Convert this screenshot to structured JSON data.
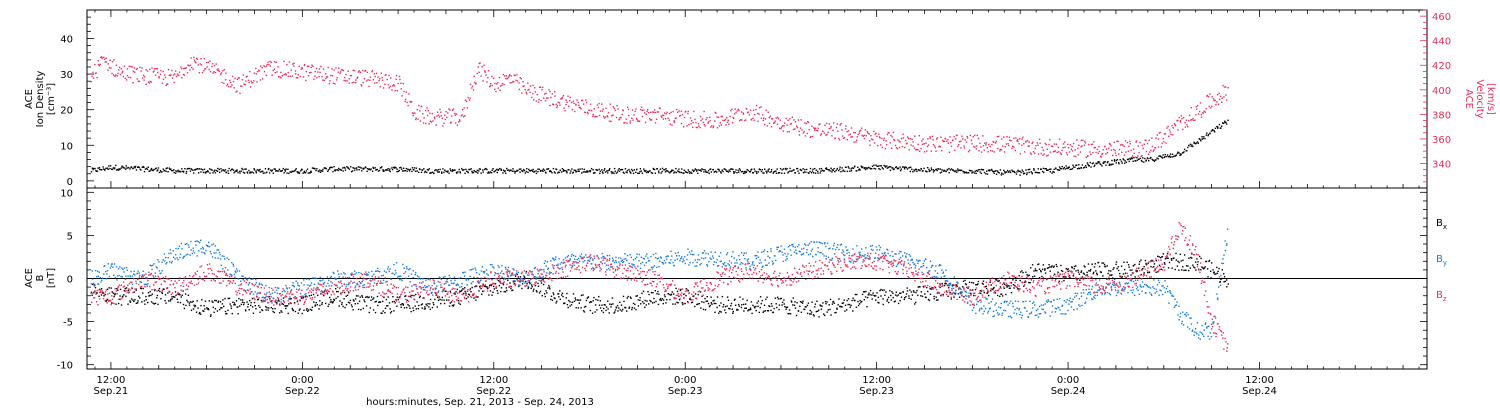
{
  "x_axis": {
    "title": "hours:minutes, Sep. 21, 2013 - Sep. 24, 2013",
    "range_hours": [
      -1.5,
      82.5
    ],
    "ticks": [
      {
        "hour": 0,
        "time": "12:00",
        "date": "Sep.21"
      },
      {
        "hour": 12,
        "time": "0:00",
        "date": "Sep.22"
      },
      {
        "hour": 24,
        "time": "12:00",
        "date": "Sep.22"
      },
      {
        "hour": 36,
        "time": "0:00",
        "date": "Sep.23"
      },
      {
        "hour": 48,
        "time": "12:00",
        "date": "Sep.23"
      },
      {
        "hour": 60,
        "time": "0:00",
        "date": "Sep.24"
      },
      {
        "hour": 72,
        "time": "12:00",
        "date": "Sep.24"
      }
    ]
  },
  "colors": {
    "black": "#000000",
    "red": "#e8305a",
    "blue": "#1a7ee0"
  },
  "chart_data": [
    {
      "type": "scatter",
      "panel": "top",
      "ylabel_left": [
        "ACE",
        "Ion Density",
        "[cm⁻³]"
      ],
      "ylabel_right": [
        "ACE",
        "Velocity",
        "[km/s]"
      ],
      "ylim_left": [
        -2,
        48
      ],
      "ylim_right": [
        320,
        465
      ],
      "yticks_left": [
        0,
        10,
        20,
        30,
        40
      ],
      "yticks_right": [
        340,
        360,
        380,
        400,
        420,
        440,
        460
      ],
      "series": [
        {
          "name": "",
          "axis": "left",
          "color": "#000000",
          "x": [
            -1.3,
            0,
            2,
            4,
            6,
            8,
            10,
            12,
            14,
            16,
            18,
            20,
            22,
            24,
            26,
            28,
            30,
            32,
            34,
            36,
            38,
            40,
            42,
            44,
            46,
            48,
            50,
            52,
            54,
            56,
            57,
            58,
            59,
            60,
            62,
            64,
            65,
            66,
            67,
            68,
            69,
            70
          ],
          "y": [
            3,
            4,
            3.5,
            3,
            3,
            3,
            3,
            3,
            3.5,
            3.5,
            3.5,
            3,
            3,
            3,
            3,
            3,
            3,
            3,
            3,
            3,
            3,
            3,
            3,
            3,
            3.5,
            4,
            3.5,
            3,
            3,
            2.5,
            2.5,
            3,
            3,
            4,
            5,
            6,
            6,
            7,
            8,
            11,
            14,
            17
          ]
        },
        {
          "name": "",
          "axis": "right",
          "color": "#e8305a",
          "x": [
            -1.3,
            -0.5,
            0.5,
            2,
            4,
            5,
            6,
            7,
            8,
            9,
            10,
            12,
            14,
            16,
            18,
            19,
            20,
            21,
            22,
            22.5,
            23,
            24,
            25,
            26,
            28,
            30,
            32,
            34,
            36,
            38,
            40,
            42,
            44,
            46,
            48,
            50,
            52,
            54,
            56,
            58,
            60,
            62,
            64,
            65,
            66,
            67,
            68,
            69,
            70
          ],
          "y": [
            410,
            425,
            415,
            412,
            410,
            425,
            418,
            412,
            404,
            412,
            418,
            415,
            412,
            410,
            406,
            382,
            378,
            378,
            378,
            400,
            418,
            405,
            410,
            400,
            392,
            385,
            380,
            380,
            377,
            375,
            383,
            374,
            368,
            366,
            360,
            358,
            356,
            357,
            356,
            354,
            353,
            352,
            352,
            354,
            362,
            373,
            382,
            392,
            400
          ]
        }
      ]
    },
    {
      "type": "scatter",
      "panel": "bottom",
      "ylabel_left": [
        "ACE",
        "B",
        "[nT]"
      ],
      "ylim": [
        -10.5,
        10.5
      ],
      "yticks": [
        -10,
        -5,
        0,
        5,
        10
      ],
      "zero_line": true,
      "legend_position": "right",
      "series": [
        {
          "name": "Bx",
          "legend_text": "B",
          "legend_sub": "x",
          "color": "#000000",
          "x": [
            -1.3,
            0,
            2,
            4,
            6,
            8,
            10,
            12,
            14,
            16,
            18,
            20,
            22,
            24,
            26,
            28,
            30,
            32,
            34,
            36,
            38,
            40,
            42,
            44,
            46,
            48,
            50,
            52,
            54,
            56,
            58,
            60,
            62,
            64,
            66,
            68,
            70
          ],
          "y": [
            -1,
            -2,
            -2,
            -2,
            -3.5,
            -3,
            -3,
            -3,
            -2,
            -3,
            -3,
            -2.5,
            -2,
            -1,
            0,
            -2,
            -3,
            -3,
            -2,
            -2,
            -3,
            -3,
            -3,
            -3.5,
            -3,
            -2,
            -2,
            -1.5,
            -1,
            -1,
            1,
            0.5,
            1,
            1,
            2,
            2,
            0
          ]
        },
        {
          "name": "By",
          "legend_text": "B",
          "legend_sub": "y",
          "color": "#1a7ee0",
          "x": [
            -1.3,
            0,
            2,
            4,
            6,
            8,
            10,
            12,
            14,
            16,
            18,
            20,
            22,
            24,
            26,
            28,
            30,
            32,
            34,
            36,
            38,
            40,
            42,
            44,
            46,
            48,
            50,
            52,
            54,
            56,
            58,
            60,
            62,
            64,
            66,
            67,
            68,
            69,
            70
          ],
          "y": [
            0,
            1,
            0,
            3,
            4,
            0,
            -2,
            -1,
            0,
            0,
            1,
            -1,
            0,
            1,
            0,
            2,
            2,
            2,
            2,
            2.5,
            2.5,
            2,
            3,
            3.5,
            3,
            3,
            2,
            1,
            -3,
            -3.5,
            -3.5,
            -3,
            -1,
            -1,
            -1,
            -4,
            -6,
            -6,
            6
          ]
        },
        {
          "name": "Bz",
          "legend_text": "B",
          "legend_sub": "z",
          "color": "#e8305a",
          "x": [
            -1.3,
            0,
            2,
            4,
            6,
            8,
            10,
            12,
            14,
            16,
            18,
            20,
            22,
            24,
            26,
            28,
            30,
            32,
            34,
            36,
            38,
            40,
            42,
            44,
            46,
            48,
            50,
            52,
            54,
            56,
            58,
            60,
            62,
            64,
            66,
            67,
            68,
            69,
            70
          ],
          "y": [
            -2,
            -2,
            0,
            -1,
            1,
            -1,
            -2,
            -2,
            -1,
            0,
            -2,
            -1,
            -2,
            0,
            0,
            1,
            2,
            1,
            0,
            -2,
            0,
            1,
            0,
            1,
            2,
            2,
            1,
            -1,
            -2,
            0,
            -1,
            0,
            -1,
            0,
            2,
            6,
            3,
            -5,
            -8
          ]
        }
      ]
    }
  ]
}
